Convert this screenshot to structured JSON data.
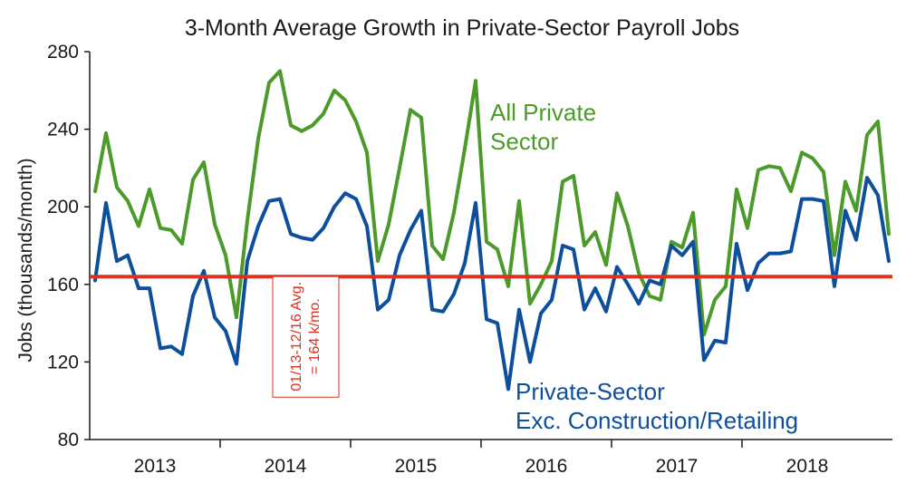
{
  "chart_data": {
    "type": "line",
    "title": "3-Month Average Growth in Private-Sector Payroll Jobs",
    "xlabel": "",
    "ylabel": "Jobs (thousands/month)",
    "ylim": [
      80,
      280
    ],
    "yticks": [
      80,
      120,
      160,
      200,
      240,
      280
    ],
    "year_labels": [
      "2013",
      "2014",
      "2015",
      "2016",
      "2017",
      "2018"
    ],
    "x_range": [
      "2013-01",
      "2018-09"
    ],
    "reference_line": {
      "value": 164,
      "color": "#e0301e",
      "label_line1": "01/13-12/16 Avg.",
      "label_line2": "= 164 k/mo."
    },
    "series": [
      {
        "name": "All Private Sector",
        "label_line1": "All Private",
        "label_line2": "Sector",
        "color": "#4c9a2a",
        "values": [
          208,
          238,
          210,
          203,
          190,
          209,
          189,
          188,
          181,
          214,
          223,
          191,
          175,
          143,
          193,
          235,
          264,
          270,
          242,
          239,
          242,
          248,
          260,
          255,
          244,
          228,
          172,
          191,
          220,
          250,
          246,
          180,
          173,
          197,
          230,
          265,
          182,
          178,
          159,
          203,
          150,
          160,
          172,
          213,
          216,
          180,
          187,
          170,
          207,
          190,
          166,
          154,
          152,
          182,
          179,
          197,
          134,
          152,
          159,
          209,
          189,
          219,
          221,
          220,
          208,
          228,
          225,
          218,
          175,
          213,
          198,
          237,
          244,
          186
        ]
      },
      {
        "name": "Private-Sector Exc. Construction/Retailing",
        "label_line1": "Private-Sector",
        "label_line2": "Exc. Construction/Retailing",
        "color": "#0d4f9c",
        "values": [
          162,
          202,
          172,
          175,
          158,
          158,
          127,
          128,
          124,
          154,
          167,
          143,
          136,
          119,
          172,
          190,
          203,
          204,
          186,
          184,
          183,
          189,
          200,
          207,
          204,
          190,
          147,
          152,
          175,
          188,
          198,
          147,
          146,
          155,
          171,
          202,
          142,
          140,
          106,
          147,
          120,
          145,
          152,
          180,
          178,
          147,
          158,
          146,
          169,
          160,
          150,
          162,
          160,
          180,
          175,
          182,
          121,
          131,
          130,
          181,
          157,
          171,
          176,
          176,
          177,
          204,
          204,
          203,
          159,
          198,
          183,
          215,
          206,
          172
        ]
      }
    ]
  }
}
